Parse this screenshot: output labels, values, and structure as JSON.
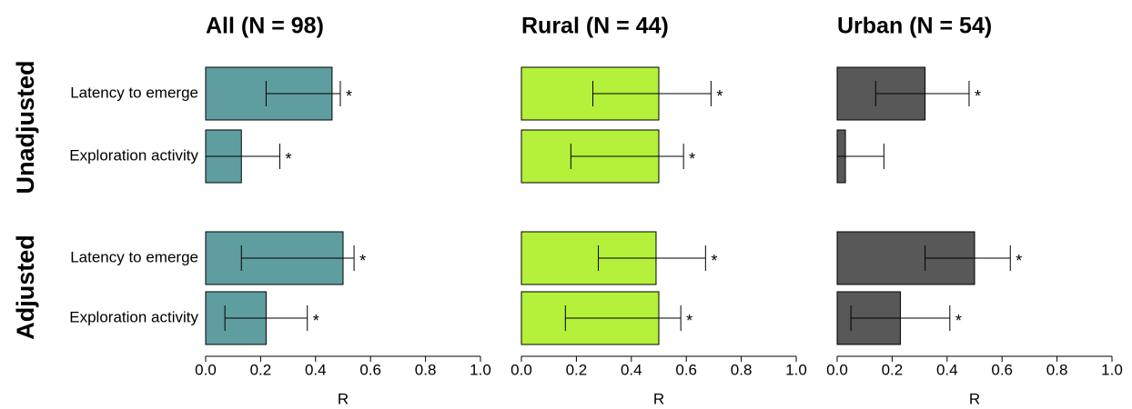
{
  "row_groups": [
    "Unadjusted",
    "Adjusted"
  ],
  "chart_data": [
    {
      "type": "bar",
      "title": "All (N = 98)",
      "xlabel": "R",
      "color": "#5f9ea0",
      "categories": [
        "Latency to emerge",
        "Exploration activity",
        "Latency to emerge",
        "Exploration activity"
      ],
      "values": [
        0.46,
        0.13,
        0.5,
        0.22
      ],
      "ci_low": [
        0.22,
        0.0,
        0.13,
        0.07
      ],
      "ci_high": [
        0.49,
        0.27,
        0.54,
        0.37
      ],
      "annotations": [
        "*",
        "*",
        "*",
        "*"
      ],
      "xlim": [
        0,
        1
      ],
      "xticks": [
        {
          "value": 0,
          "label": "0.0"
        },
        {
          "value": 0.2,
          "label": "0.2"
        },
        {
          "value": 0.4,
          "label": "0.4"
        },
        {
          "value": 0.6,
          "label": "0.6"
        },
        {
          "value": 0.8,
          "label": "0.8"
        },
        {
          "value": 1,
          "label": "1.0"
        }
      ]
    },
    {
      "type": "bar",
      "title": "Rural (N = 44)",
      "xlabel": "R",
      "color": "#b5f03a",
      "values": [
        0.5,
        0.5,
        0.49,
        0.5
      ],
      "ci_low": [
        0.26,
        0.18,
        0.28,
        0.16
      ],
      "ci_high": [
        0.69,
        0.59,
        0.67,
        0.58
      ],
      "annotations": [
        "*",
        "*",
        "*",
        "*"
      ],
      "xlim": [
        0,
        1
      ],
      "xticks": [
        {
          "value": 0,
          "label": "0.0"
        },
        {
          "value": 0.2,
          "label": "0.2"
        },
        {
          "value": 0.4,
          "label": "0.4"
        },
        {
          "value": 0.6,
          "label": "0.6"
        },
        {
          "value": 0.8,
          "label": "0.8"
        },
        {
          "value": 1,
          "label": "1.0"
        }
      ]
    },
    {
      "type": "bar",
      "title": "Urban (N = 54)",
      "xlabel": "R",
      "color": "#585858",
      "values": [
        0.32,
        0.03,
        0.5,
        0.23
      ],
      "ci_low": [
        0.14,
        0.0,
        0.32,
        0.05
      ],
      "ci_high": [
        0.48,
        0.17,
        0.63,
        0.41
      ],
      "annotations": [
        "*",
        null,
        "*",
        "*"
      ],
      "xlim": [
        0,
        1
      ],
      "xticks": [
        {
          "value": 0,
          "label": "0.0"
        },
        {
          "value": 0.2,
          "label": "0.2"
        },
        {
          "value": 0.4,
          "label": "0.4"
        },
        {
          "value": 0.6,
          "label": "0.6"
        },
        {
          "value": 0.8,
          "label": "0.8"
        },
        {
          "value": 1,
          "label": "1.0"
        }
      ]
    }
  ]
}
